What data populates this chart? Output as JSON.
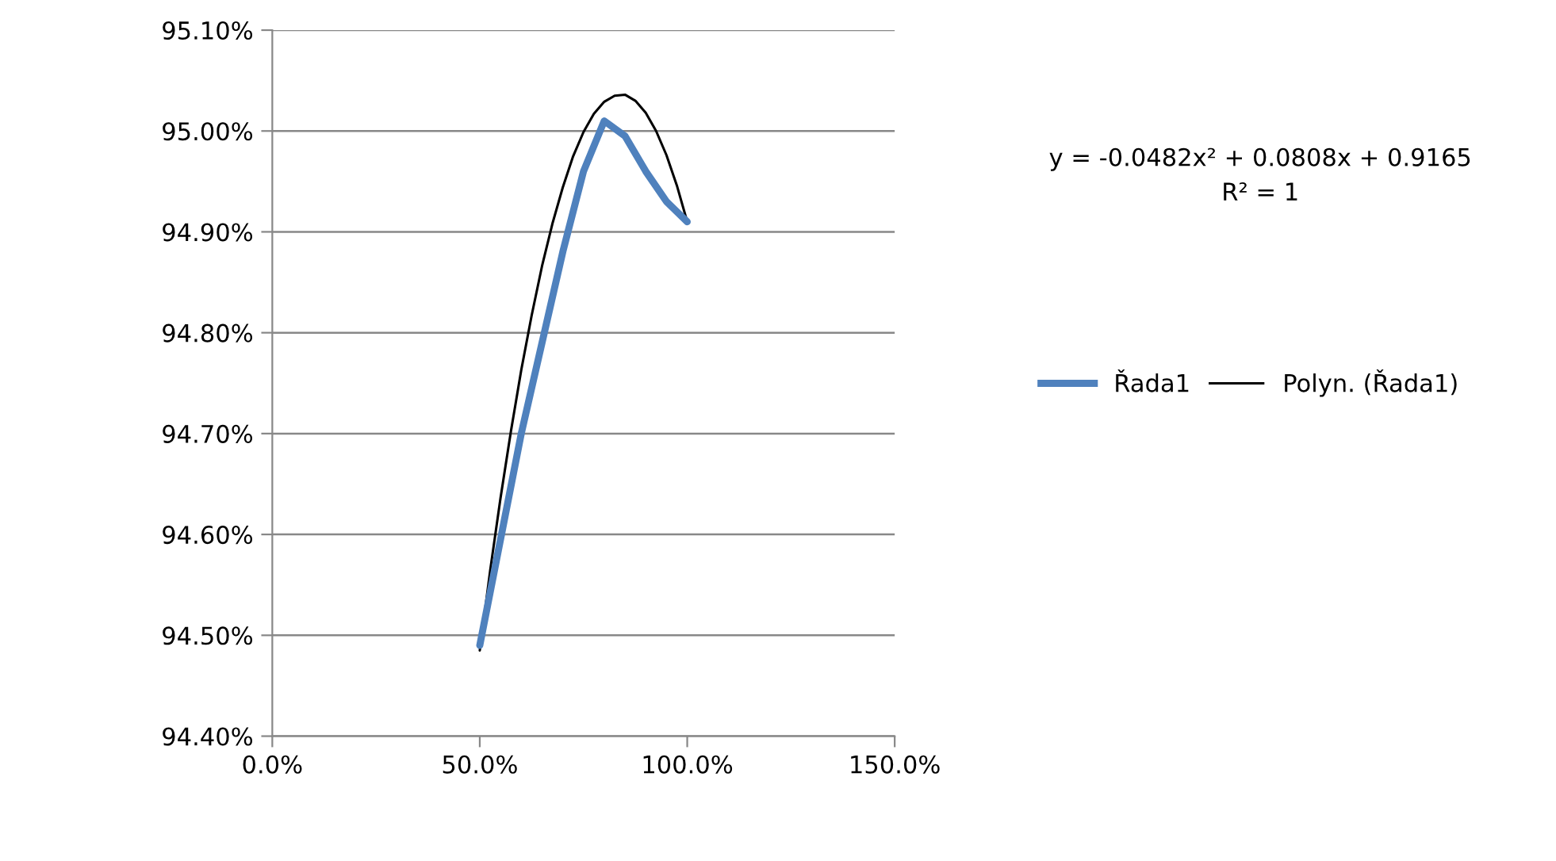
{
  "chart_data": {
    "type": "line",
    "x": [
      50,
      60,
      70,
      75,
      80,
      85,
      90,
      95,
      100
    ],
    "series": [
      {
        "name": "Řada1",
        "color": "#4f81bd",
        "values": [
          94.49,
          94.7,
          94.88,
          94.96,
          95.01,
          94.995,
          94.96,
          94.93,
          94.91
        ]
      },
      {
        "name": "Polyn. (Řada1)",
        "color": "#000000",
        "type": "line",
        "x": [
          50,
          52.5,
          55,
          57.5,
          60,
          62.5,
          65,
          67.5,
          70,
          72.5,
          75,
          77.5,
          80,
          82.5,
          85,
          87.5,
          90,
          92.5,
          95,
          97.5,
          100
        ],
        "values": [
          94.485,
          94.564,
          94.636,
          94.702,
          94.763,
          94.817,
          94.866,
          94.908,
          94.944,
          94.975,
          94.999,
          95.017,
          95.029,
          95.035,
          95.036,
          95.03,
          95.018,
          95.0,
          94.976,
          94.946,
          94.91
        ]
      }
    ],
    "xlim": [
      0,
      150
    ],
    "xticks": [
      {
        "value": 0,
        "label": "0.0%"
      },
      {
        "value": 50,
        "label": "50.0%"
      },
      {
        "value": 100,
        "label": "100.0%"
      },
      {
        "value": 150,
        "label": "150.0%"
      }
    ],
    "ylim": [
      94.4,
      95.1
    ],
    "yticks": [
      {
        "value": 94.4,
        "label": "94.40%"
      },
      {
        "value": 94.5,
        "label": "94.50%"
      },
      {
        "value": 94.6,
        "label": "94.60%"
      },
      {
        "value": 94.7,
        "label": "94.70%"
      },
      {
        "value": 94.8,
        "label": "94.80%"
      },
      {
        "value": 94.9,
        "label": "94.90%"
      },
      {
        "value": 95.0,
        "label": "95.00%"
      },
      {
        "value": 95.1,
        "label": "95.10%"
      }
    ],
    "grid": "y",
    "legend": "right",
    "marker": "none",
    "line_style": "solid",
    "annotations": [
      "y = -0.0482x² + 0.0808x + 0.9165",
      "R² = 1"
    ]
  }
}
